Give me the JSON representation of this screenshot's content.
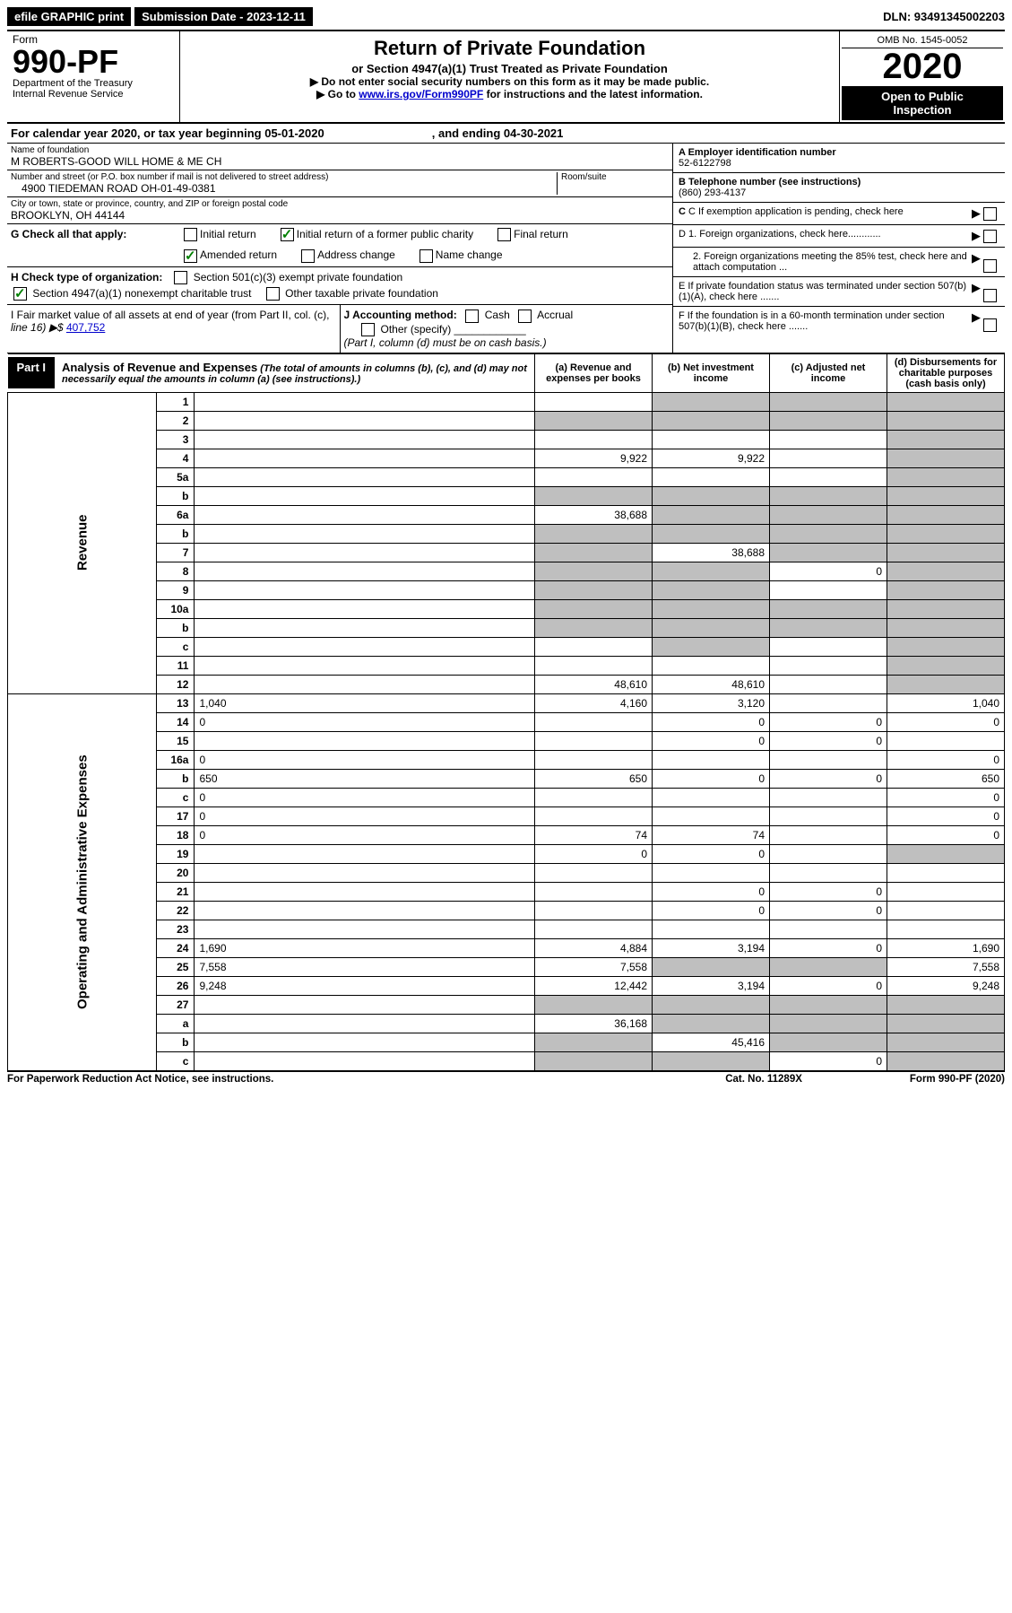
{
  "topbar": {
    "efile": "efile GRAPHIC print",
    "submission_label": "Submission Date - 2023-12-11",
    "dln": "DLN: 93491345002203"
  },
  "header": {
    "form_label": "Form",
    "form_no": "990-PF",
    "dept1": "Department of the Treasury",
    "dept2": "Internal Revenue Service",
    "title": "Return of Private Foundation",
    "subtitle": "or Section 4947(a)(1) Trust Treated as Private Foundation",
    "instr1": "▶ Do not enter social security numbers on this form as it may be made public.",
    "instr2_pre": "▶ Go to ",
    "instr2_link": "www.irs.gov/Form990PF",
    "instr2_post": " for instructions and the latest information.",
    "omb": "OMB No. 1545-0052",
    "year": "2020",
    "open1": "Open to Public",
    "open2": "Inspection"
  },
  "calendar": {
    "text_a": "For calendar year 2020, or tax year beginning 05-01-2020",
    "text_b": ", and ending 04-30-2021"
  },
  "info": {
    "name_lbl": "Name of foundation",
    "name_val": "M ROBERTS-GOOD WILL HOME & ME CH",
    "street_lbl": "Number and street (or P.O. box number if mail is not delivered to street address)",
    "street_val": "4900 TIEDEMAN ROAD OH-01-49-0381",
    "room_lbl": "Room/suite",
    "city_lbl": "City or town, state or province, country, and ZIP or foreign postal code",
    "city_val": "BROOKLYN, OH  44144",
    "ein_lbl": "A Employer identification number",
    "ein_val": "52-6122798",
    "phone_lbl": "B Telephone number (see instructions)",
    "phone_val": "(860) 293-4137",
    "c_lbl": "C If exemption application is pending, check here",
    "d1": "D 1. Foreign organizations, check here............",
    "d2": "2. Foreign organizations meeting the 85% test, check here and attach computation ...",
    "e_lbl": "E  If private foundation status was terminated under section 507(b)(1)(A), check here .......",
    "f_lbl": "F  If the foundation is in a 60-month termination under section 507(b)(1)(B), check here .......",
    "g_lbl": "G Check all that apply:",
    "g_opts": [
      "Initial return",
      "Initial return of a former public charity",
      "Final return",
      "Amended return",
      "Address change",
      "Name change"
    ],
    "h_lbl": "H Check type of organization:",
    "h1": "Section 501(c)(3) exempt private foundation",
    "h2": "Section 4947(a)(1) nonexempt charitable trust",
    "h3": "Other taxable private foundation",
    "i_lbl": "I Fair market value of all assets at end of year (from Part II, col. (c),",
    "i_line": "line 16) ▶$ ",
    "i_val": "407,752",
    "j_lbl": "J Accounting method:",
    "j1": "Cash",
    "j2": "Accrual",
    "j3": "Other (specify)",
    "j_note": "(Part I, column (d) must be on cash basis.)"
  },
  "part1": {
    "label": "Part I",
    "title": "Analysis of Revenue and Expenses",
    "note": "(The total of amounts in columns (b), (c), and (d) may not necessarily equal the amounts in column (a) (see instructions).)",
    "col_a": "(a)   Revenue and expenses per books",
    "col_b": "(b)   Net investment income",
    "col_c": "(c)   Adjusted net income",
    "col_d": "(d)   Disbursements for charitable purposes (cash basis only)",
    "side_rev": "Revenue",
    "side_exp": "Operating and Administrative Expenses"
  },
  "rows": [
    {
      "n": "1",
      "d": "",
      "a": "",
      "b": "",
      "c": "",
      "grey": [
        false,
        true,
        true,
        true
      ]
    },
    {
      "n": "2",
      "d": "",
      "a": "",
      "b": "",
      "c": "",
      "grey": [
        true,
        true,
        true,
        true
      ]
    },
    {
      "n": "3",
      "d": "",
      "a": "",
      "b": "",
      "c": "",
      "grey": [
        false,
        false,
        false,
        true
      ]
    },
    {
      "n": "4",
      "d": "",
      "a": "9,922",
      "b": "9,922",
      "c": "",
      "grey": [
        false,
        false,
        false,
        true
      ]
    },
    {
      "n": "5a",
      "d": "",
      "a": "",
      "b": "",
      "c": "",
      "grey": [
        false,
        false,
        false,
        true
      ]
    },
    {
      "n": "b",
      "d": "",
      "a": "",
      "b": "",
      "c": "",
      "grey": [
        true,
        true,
        true,
        true
      ]
    },
    {
      "n": "6a",
      "d": "",
      "a": "38,688",
      "b": "",
      "c": "",
      "grey": [
        false,
        true,
        true,
        true
      ]
    },
    {
      "n": "b",
      "d": "",
      "a": "",
      "b": "",
      "c": "",
      "grey": [
        true,
        true,
        true,
        true
      ]
    },
    {
      "n": "7",
      "d": "",
      "a": "",
      "b": "38,688",
      "c": "",
      "grey": [
        true,
        false,
        true,
        true
      ]
    },
    {
      "n": "8",
      "d": "",
      "a": "",
      "b": "",
      "c": "0",
      "grey": [
        true,
        true,
        false,
        true
      ]
    },
    {
      "n": "9",
      "d": "",
      "a": "",
      "b": "",
      "c": "",
      "grey": [
        true,
        true,
        false,
        true
      ]
    },
    {
      "n": "10a",
      "d": "",
      "a": "",
      "b": "",
      "c": "",
      "grey": [
        true,
        true,
        true,
        true
      ]
    },
    {
      "n": "b",
      "d": "",
      "a": "",
      "b": "",
      "c": "",
      "grey": [
        true,
        true,
        true,
        true
      ]
    },
    {
      "n": "c",
      "d": "",
      "a": "",
      "b": "",
      "c": "",
      "grey": [
        false,
        true,
        false,
        true
      ]
    },
    {
      "n": "11",
      "d": "",
      "a": "",
      "b": "",
      "c": "",
      "grey": [
        false,
        false,
        false,
        true
      ]
    },
    {
      "n": "12",
      "d": "",
      "a": "48,610",
      "b": "48,610",
      "c": "",
      "grey": [
        false,
        false,
        false,
        true
      ]
    },
    {
      "n": "13",
      "d": "1,040",
      "a": "4,160",
      "b": "3,120",
      "c": "",
      "grey": [
        false,
        false,
        false,
        false
      ]
    },
    {
      "n": "14",
      "d": "0",
      "a": "",
      "b": "0",
      "c": "0",
      "grey": [
        false,
        false,
        false,
        false
      ]
    },
    {
      "n": "15",
      "d": "",
      "a": "",
      "b": "0",
      "c": "0",
      "grey": [
        false,
        false,
        false,
        false
      ]
    },
    {
      "n": "16a",
      "d": "0",
      "a": "",
      "b": "",
      "c": "",
      "grey": [
        false,
        false,
        false,
        false
      ]
    },
    {
      "n": "b",
      "d": "650",
      "a": "650",
      "b": "0",
      "c": "0",
      "grey": [
        false,
        false,
        false,
        false
      ]
    },
    {
      "n": "c",
      "d": "0",
      "a": "",
      "b": "",
      "c": "",
      "grey": [
        false,
        false,
        false,
        false
      ]
    },
    {
      "n": "17",
      "d": "0",
      "a": "",
      "b": "",
      "c": "",
      "grey": [
        false,
        false,
        false,
        false
      ]
    },
    {
      "n": "18",
      "d": "0",
      "a": "74",
      "b": "74",
      "c": "",
      "grey": [
        false,
        false,
        false,
        false
      ]
    },
    {
      "n": "19",
      "d": "",
      "a": "0",
      "b": "0",
      "c": "",
      "grey": [
        false,
        false,
        false,
        true
      ]
    },
    {
      "n": "20",
      "d": "",
      "a": "",
      "b": "",
      "c": "",
      "grey": [
        false,
        false,
        false,
        false
      ]
    },
    {
      "n": "21",
      "d": "",
      "a": "",
      "b": "0",
      "c": "0",
      "grey": [
        false,
        false,
        false,
        false
      ]
    },
    {
      "n": "22",
      "d": "",
      "a": "",
      "b": "0",
      "c": "0",
      "grey": [
        false,
        false,
        false,
        false
      ]
    },
    {
      "n": "23",
      "d": "",
      "a": "",
      "b": "",
      "c": "",
      "grey": [
        false,
        false,
        false,
        false
      ]
    },
    {
      "n": "24",
      "d": "1,690",
      "a": "4,884",
      "b": "3,194",
      "c": "0",
      "grey": [
        false,
        false,
        false,
        false
      ]
    },
    {
      "n": "25",
      "d": "7,558",
      "a": "7,558",
      "b": "",
      "c": "",
      "grey": [
        false,
        true,
        true,
        false
      ]
    },
    {
      "n": "26",
      "d": "9,248",
      "a": "12,442",
      "b": "3,194",
      "c": "0",
      "grey": [
        false,
        false,
        false,
        false
      ]
    },
    {
      "n": "27",
      "d": "",
      "a": "",
      "b": "",
      "c": "",
      "grey": [
        true,
        true,
        true,
        true
      ]
    },
    {
      "n": "a",
      "d": "",
      "a": "36,168",
      "b": "",
      "c": "",
      "grey": [
        false,
        true,
        true,
        true
      ]
    },
    {
      "n": "b",
      "d": "",
      "a": "",
      "b": "45,416",
      "c": "",
      "grey": [
        true,
        false,
        true,
        true
      ]
    },
    {
      "n": "c",
      "d": "",
      "a": "",
      "b": "",
      "c": "0",
      "grey": [
        true,
        true,
        false,
        true
      ]
    }
  ],
  "footer": {
    "left": "For Paperwork Reduction Act Notice, see instructions.",
    "mid": "Cat. No. 11289X",
    "right": "Form 990-PF (2020)"
  }
}
